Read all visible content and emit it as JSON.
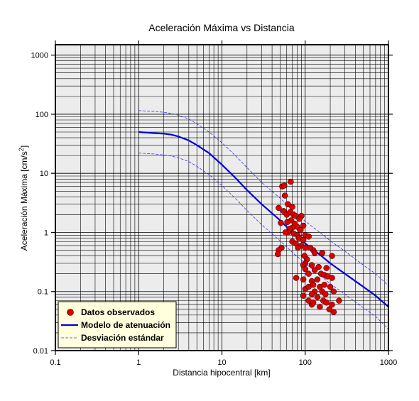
{
  "chart_data": {
    "type": "scatter",
    "title": "Aceleración Máxima vs Distancia",
    "xlabel": "Distancia hipocentral [km]",
    "ylabel_text": "Aceleración Máxima [cm/s",
    "ylabel_sup": "2",
    "ylabel_close": "]",
    "xscale": "log",
    "yscale": "log",
    "xlim": [
      0.1,
      1000
    ],
    "ylim": [
      0.01,
      1500
    ],
    "grid": true,
    "legend_position": "bottom-left",
    "xticks": [
      "0.1",
      "1",
      "10",
      "100",
      "1000"
    ],
    "xtick_values": [
      0.1,
      1,
      10,
      100,
      1000
    ],
    "yticks": [
      "0.01",
      "0.1",
      "1",
      "10",
      "100",
      "1000"
    ],
    "ytick_values": [
      0.01,
      0.1,
      1,
      10,
      100,
      1000
    ],
    "legend": [
      "Datos observados",
      "Modelo de atenuación",
      "Desviación estándar"
    ],
    "colors": {
      "points": "#dd0000",
      "model": "#0000dd",
      "std": "#3333ee",
      "legend_bg": "#ffffdd",
      "plot_bg": "#ececec"
    },
    "series": [
      {
        "name": "Datos observados",
        "points": [
          [
            53,
            6.0
          ],
          [
            56,
            6.2
          ],
          [
            67,
            7.2
          ],
          [
            57,
            4.2
          ],
          [
            62,
            3.0
          ],
          [
            70,
            2.7
          ],
          [
            48,
            2.6
          ],
          [
            55,
            2.3
          ],
          [
            60,
            2.0
          ],
          [
            66,
            2.2
          ],
          [
            72,
            2.0
          ],
          [
            77,
            1.9
          ],
          [
            90,
            1.9
          ],
          [
            85,
            1.7
          ],
          [
            68,
            1.6
          ],
          [
            61,
            1.5
          ],
          [
            51,
            1.45
          ],
          [
            75,
            1.4
          ],
          [
            95,
            1.3
          ],
          [
            80,
            1.25
          ],
          [
            70,
            1.2
          ],
          [
            65,
            1.15
          ],
          [
            88,
            1.1
          ],
          [
            62,
            1.0
          ],
          [
            58,
            1.0
          ],
          [
            73,
            0.95
          ],
          [
            81,
            0.9
          ],
          [
            100,
            0.9
          ],
          [
            110,
            0.85
          ],
          [
            84,
            0.8
          ],
          [
            95,
            0.75
          ],
          [
            70,
            0.7
          ],
          [
            77,
            0.65
          ],
          [
            90,
            0.6
          ],
          [
            100,
            0.55
          ],
          [
            82,
            0.55
          ],
          [
            52,
            0.55
          ],
          [
            48,
            0.5
          ],
          [
            47,
            0.43
          ],
          [
            125,
            0.5
          ],
          [
            115,
            0.55
          ],
          [
            130,
            0.45
          ],
          [
            98,
            0.4
          ],
          [
            160,
            0.45
          ],
          [
            210,
            0.4
          ],
          [
            105,
            0.35
          ],
          [
            100,
            0.3
          ],
          [
            95,
            0.28
          ],
          [
            120,
            0.28
          ],
          [
            145,
            0.26
          ],
          [
            180,
            0.25
          ],
          [
            100,
            0.24
          ],
          [
            130,
            0.23
          ],
          [
            155,
            0.2
          ],
          [
            110,
            0.2
          ],
          [
            170,
            0.19
          ],
          [
            78,
            0.17
          ],
          [
            95,
            0.16
          ],
          [
            120,
            0.15
          ],
          [
            140,
            0.16
          ],
          [
            185,
            0.18
          ],
          [
            210,
            0.17
          ],
          [
            100,
            0.11
          ],
          [
            110,
            0.12
          ],
          [
            125,
            0.13
          ],
          [
            150,
            0.12
          ],
          [
            170,
            0.13
          ],
          [
            200,
            0.12
          ],
          [
            130,
            0.1
          ],
          [
            160,
            0.1
          ],
          [
            120,
            0.09
          ],
          [
            175,
            0.09
          ],
          [
            95,
            0.085
          ],
          [
            140,
            0.08
          ],
          [
            220,
            0.1
          ],
          [
            110,
            0.07
          ],
          [
            165,
            0.07
          ],
          [
            255,
            0.07
          ],
          [
            120,
            0.06
          ],
          [
            150,
            0.055
          ],
          [
            180,
            0.065
          ],
          [
            210,
            0.06
          ],
          [
            125,
            0.065
          ],
          [
            220,
            0.045
          ],
          [
            195,
            0.05
          ]
        ]
      },
      {
        "name": "Modelo de atenuación",
        "points": [
          [
            1,
            50
          ],
          [
            1.5,
            48
          ],
          [
            2,
            47
          ],
          [
            2.5,
            45
          ],
          [
            3,
            42
          ],
          [
            4,
            36
          ],
          [
            5,
            30
          ],
          [
            7,
            22
          ],
          [
            10,
            14
          ],
          [
            15,
            8
          ],
          [
            20,
            5.2
          ],
          [
            30,
            3.0
          ],
          [
            50,
            1.6
          ],
          [
            70,
            1.0
          ],
          [
            100,
            0.65
          ],
          [
            150,
            0.42
          ],
          [
            200,
            0.3
          ],
          [
            300,
            0.2
          ],
          [
            500,
            0.12
          ],
          [
            700,
            0.085
          ],
          [
            1000,
            0.055
          ]
        ]
      },
      {
        "name": "Desviación estándar",
        "upper": [
          [
            1,
            115
          ],
          [
            1.5,
            112
          ],
          [
            2,
            108
          ],
          [
            2.5,
            103
          ],
          [
            3,
            96
          ],
          [
            4,
            83
          ],
          [
            5,
            69
          ],
          [
            7,
            50
          ],
          [
            10,
            33
          ],
          [
            15,
            19
          ],
          [
            20,
            12.5
          ],
          [
            30,
            7.0
          ],
          [
            50,
            3.8
          ],
          [
            70,
            2.4
          ],
          [
            100,
            1.55
          ],
          [
            150,
            1.0
          ],
          [
            200,
            0.72
          ],
          [
            300,
            0.48
          ],
          [
            500,
            0.28
          ],
          [
            700,
            0.2
          ],
          [
            1000,
            0.125
          ]
        ],
        "lower": [
          [
            1,
            22
          ],
          [
            1.5,
            21.3
          ],
          [
            2,
            20.5
          ],
          [
            2.5,
            19.5
          ],
          [
            3,
            18.3
          ],
          [
            4,
            15.8
          ],
          [
            5,
            13.2
          ],
          [
            7,
            9.5
          ],
          [
            10,
            6.2
          ],
          [
            15,
            3.6
          ],
          [
            20,
            2.35
          ],
          [
            30,
            1.35
          ],
          [
            50,
            0.72
          ],
          [
            70,
            0.46
          ],
          [
            100,
            0.3
          ],
          [
            150,
            0.19
          ],
          [
            200,
            0.135
          ],
          [
            300,
            0.09
          ],
          [
            500,
            0.053
          ],
          [
            700,
            0.038
          ],
          [
            1000,
            0.023
          ]
        ]
      }
    ]
  }
}
